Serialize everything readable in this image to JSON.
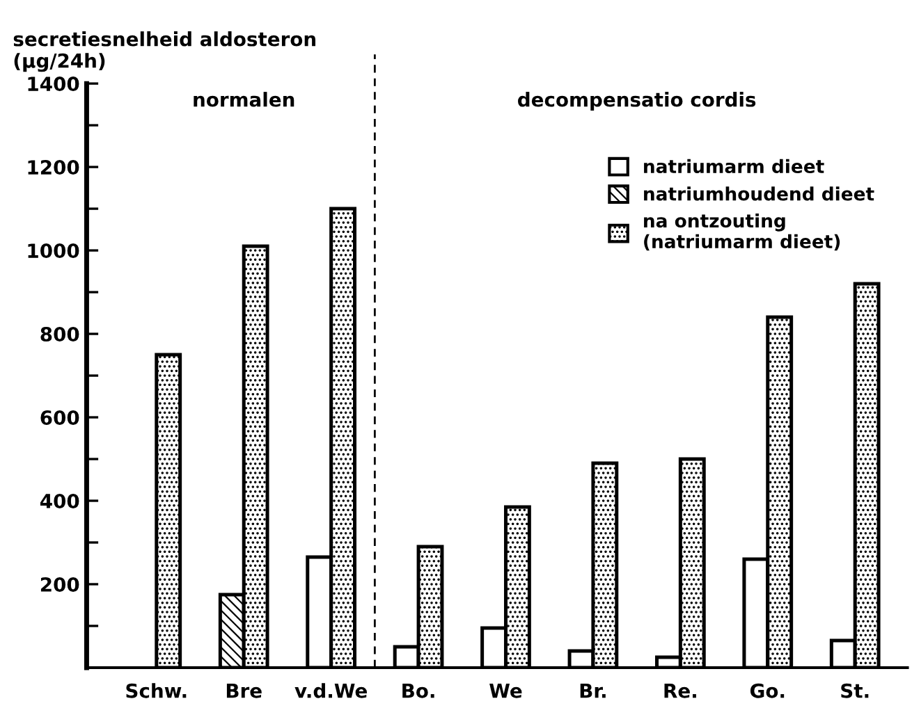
{
  "chart_data": {
    "type": "bar",
    "ylabel": "secretiesnelheid aldosteron\n(μg/24h)",
    "annotations": [
      "normalen",
      "decompensatio cordis"
    ],
    "categories": [
      "Schw.",
      "Bre",
      "v.d.We",
      "Bo.",
      "We",
      "Br.",
      "Re.",
      "Go.",
      "St."
    ],
    "series": [
      {
        "name": "natriumarm dieet",
        "color": "#ffffff",
        "values": [
          null,
          null,
          265,
          50,
          95,
          40,
          25,
          260,
          65
        ]
      },
      {
        "name": "natriumhoudend dieet",
        "color": "#000000",
        "values": [
          null,
          175,
          null,
          null,
          null,
          null,
          null,
          null,
          null
        ]
      },
      {
        "name": "na ontzouting\n(natriumarm dieet)",
        "color": "#000000",
        "values": [
          750,
          1010,
          1100,
          290,
          385,
          490,
          500,
          840,
          920
        ]
      }
    ],
    "ylim": [
      0,
      1400
    ],
    "yticks": [
      {
        "value": 100,
        "label": null
      },
      200,
      {
        "value": 300,
        "label": null
      },
      400,
      {
        "value": 500,
        "label": null
      },
      600,
      {
        "value": 700,
        "label": null
      },
      800,
      {
        "value": 900,
        "label": null
      },
      1000,
      {
        "value": 1100,
        "label": null
      },
      1200,
      {
        "value": 1300,
        "label": null
      },
      1400
    ],
    "grid": false,
    "legend": "top right"
  }
}
